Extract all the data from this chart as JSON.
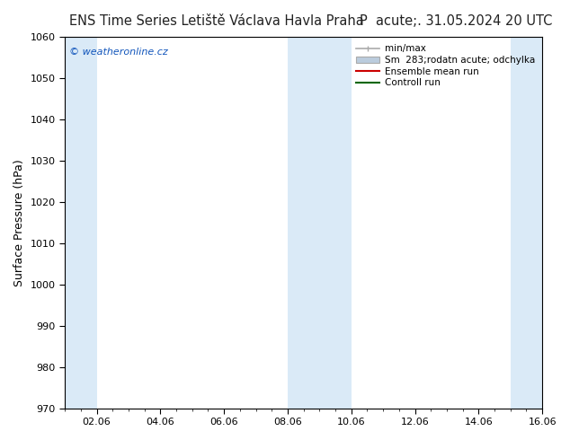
{
  "title_left": "ENS Time Series Letiště Václava Havla Praha",
  "title_right": "P  acute;. 31.05.2024 20 UTC",
  "ylabel": "Surface Pressure (hPa)",
  "ylim": [
    970,
    1060
  ],
  "yticks": [
    970,
    980,
    990,
    1000,
    1010,
    1020,
    1030,
    1040,
    1050,
    1060
  ],
  "xtick_labels": [
    "02.06",
    "04.06",
    "06.06",
    "08.06",
    "10.06",
    "12.06",
    "14.06",
    "16.06"
  ],
  "watermark": "© weatheronline.cz",
  "bg_color": "#ffffff",
  "plot_bg_color": "#ffffff",
  "shaded_band_color": "#daeaf7",
  "legend_entries": [
    "min/max",
    "Sm  283;rodatn acute; odchylka",
    "Ensemble mean run",
    "Controll run"
  ],
  "ensemble_mean_color": "#cc0000",
  "control_run_color": "#006600",
  "minmax_color": "#aaaaaa",
  "spread_color": "#bbccdd",
  "title_fontsize": 10.5,
  "axis_fontsize": 9,
  "tick_fontsize": 8,
  "shaded_ranges": [
    [
      0,
      1
    ],
    [
      7,
      9
    ],
    [
      14,
      15
    ]
  ]
}
